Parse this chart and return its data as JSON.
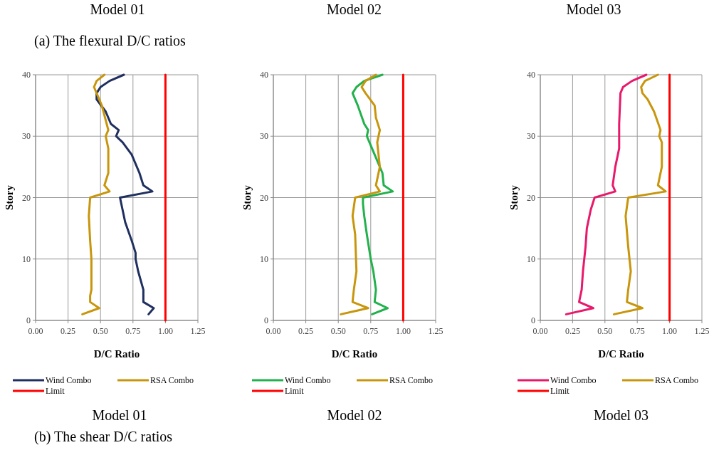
{
  "chart_data": [
    {
      "type": "line",
      "title": "Model 01",
      "annotations": [
        "Model 01",
        "(a)   The flexural D/C ratios",
        "(b)   The shear D/C ratios"
      ],
      "xlabel": "D/C Ratio",
      "ylabel": "Story",
      "xlim": [
        0,
        1.25
      ],
      "xticks": [
        {
          "value": 0,
          "label": "0.00"
        },
        {
          "value": 0.25,
          "label": "0.25"
        },
        {
          "value": 0.5,
          "label": "0.50"
        },
        {
          "value": 0.75,
          "label": "0.75"
        },
        {
          "value": 1,
          "label": "1.00"
        },
        {
          "value": 1.25,
          "label": "1.25"
        }
      ],
      "ylim": [
        0,
        40
      ],
      "yticks": [
        0,
        10,
        20,
        30,
        40
      ],
      "grid": true,
      "legend": "bottom",
      "series": [
        {
          "name": "Wind Combo",
          "color": "#1f2f5f",
          "x": [
            0.87,
            0.91,
            0.83,
            0.83,
            0.79,
            0.77,
            0.77,
            0.74,
            0.69,
            0.67,
            0.65,
            0.9,
            0.83,
            0.8,
            0.74,
            0.67,
            0.62,
            0.64,
            0.58,
            0.54,
            0.47,
            0.47,
            0.5,
            0.57,
            0.68
          ],
          "values": [
            1,
            2,
            3,
            5,
            8,
            10,
            11,
            13,
            16,
            18,
            20,
            21,
            22,
            24,
            27,
            29,
            30,
            31,
            32,
            34,
            36,
            37,
            38,
            39,
            40
          ]
        },
        {
          "name": "RSA Combo",
          "color": "#c8960c",
          "x": [
            0.36,
            0.49,
            0.42,
            0.42,
            0.43,
            0.43,
            0.42,
            0.41,
            0.42,
            0.57,
            0.53,
            0.56,
            0.56,
            0.54,
            0.56,
            0.51,
            0.45,
            0.47,
            0.53
          ],
          "values": [
            1,
            2,
            3,
            4,
            5,
            10,
            13,
            17,
            20,
            21,
            22,
            24,
            28,
            30,
            31,
            35,
            38,
            39,
            40
          ]
        },
        {
          "name": "Limit",
          "color": "#ff0000",
          "x": [
            1,
            1
          ],
          "values": [
            0,
            40
          ]
        }
      ]
    },
    {
      "type": "line",
      "title": "Model 02",
      "annotations": [
        "Model 02"
      ],
      "xlabel": "D/C Ratio",
      "ylabel": "Story",
      "xlim": [
        0,
        1.25
      ],
      "xticks": [
        {
          "value": 0,
          "label": "0.00"
        },
        {
          "value": 0.25,
          "label": "0.25"
        },
        {
          "value": 0.5,
          "label": "0.50"
        },
        {
          "value": 0.75,
          "label": "0.75"
        },
        {
          "value": 1,
          "label": "1.00"
        },
        {
          "value": 1.25,
          "label": "1.25"
        }
      ],
      "ylim": [
        0,
        40
      ],
      "yticks": [
        0,
        10,
        20,
        30,
        40
      ],
      "grid": true,
      "legend": "bottom",
      "series": [
        {
          "name": "Wind Combo",
          "color": "#22b14c",
          "x": [
            0.76,
            0.88,
            0.78,
            0.79,
            0.77,
            0.75,
            0.72,
            0.7,
            0.69,
            0.69,
            0.92,
            0.85,
            0.84,
            0.78,
            0.74,
            0.72,
            0.73,
            0.7,
            0.65,
            0.61,
            0.64,
            0.7,
            0.84
          ],
          "values": [
            1,
            2,
            3,
            5,
            8,
            10,
            14,
            17,
            19,
            20,
            21,
            22,
            24,
            27,
            29,
            30,
            31,
            32,
            35,
            37,
            38,
            39,
            40
          ]
        },
        {
          "name": "RSA Combo",
          "color": "#c8960c",
          "x": [
            0.52,
            0.73,
            0.61,
            0.62,
            0.64,
            0.63,
            0.61,
            0.63,
            0.82,
            0.79,
            0.82,
            0.8,
            0.82,
            0.79,
            0.78,
            0.71,
            0.68,
            0.71,
            0.79
          ],
          "values": [
            1,
            2,
            3,
            5,
            8,
            14,
            17,
            20,
            21,
            22,
            25,
            29,
            31,
            33,
            35,
            37,
            38,
            39,
            40
          ]
        },
        {
          "name": "Limit",
          "color": "#ff0000",
          "x": [
            1,
            1
          ],
          "values": [
            0,
            40
          ]
        }
      ]
    },
    {
      "type": "line",
      "title": "Model 03",
      "annotations": [
        "Model 03"
      ],
      "xlabel": "D/C Ratio",
      "ylabel": "Story",
      "xlim": [
        0,
        1.25
      ],
      "xticks": [
        {
          "value": 0,
          "label": "0.00"
        },
        {
          "value": 0.25,
          "label": "0.25"
        },
        {
          "value": 0.5,
          "label": "0.50"
        },
        {
          "value": 0.75,
          "label": "0.75"
        },
        {
          "value": 1,
          "label": "1.00"
        },
        {
          "value": 1.25,
          "label": "1.25"
        }
      ],
      "ylim": [
        0,
        40
      ],
      "yticks": [
        0,
        10,
        20,
        30,
        40
      ],
      "grid": true,
      "legend": "bottom",
      "series": [
        {
          "name": "Wind Combo",
          "color": "#e8196b",
          "x": [
            0.2,
            0.41,
            0.3,
            0.32,
            0.33,
            0.35,
            0.36,
            0.39,
            0.42,
            0.58,
            0.56,
            0.58,
            0.61,
            0.61,
            0.62,
            0.64,
            0.71,
            0.82
          ],
          "values": [
            1,
            2,
            3,
            5,
            8,
            12,
            15,
            18,
            20,
            21,
            22,
            25,
            28,
            32,
            37,
            38,
            39,
            40
          ]
        },
        {
          "name": "RSA Combo",
          "color": "#c8960c",
          "x": [
            0.57,
            0.79,
            0.67,
            0.68,
            0.7,
            0.68,
            0.66,
            0.68,
            0.97,
            0.91,
            0.94,
            0.94,
            0.92,
            0.93,
            0.88,
            0.83,
            0.79,
            0.78,
            0.81,
            0.91
          ],
          "values": [
            1,
            2,
            3,
            5,
            8,
            12,
            17,
            20,
            21,
            22,
            25,
            29,
            30,
            31,
            34,
            36,
            37,
            38,
            39,
            40
          ]
        },
        {
          "name": "Limit",
          "color": "#ff0000",
          "x": [
            1,
            1
          ],
          "values": [
            0,
            40
          ]
        }
      ]
    }
  ]
}
